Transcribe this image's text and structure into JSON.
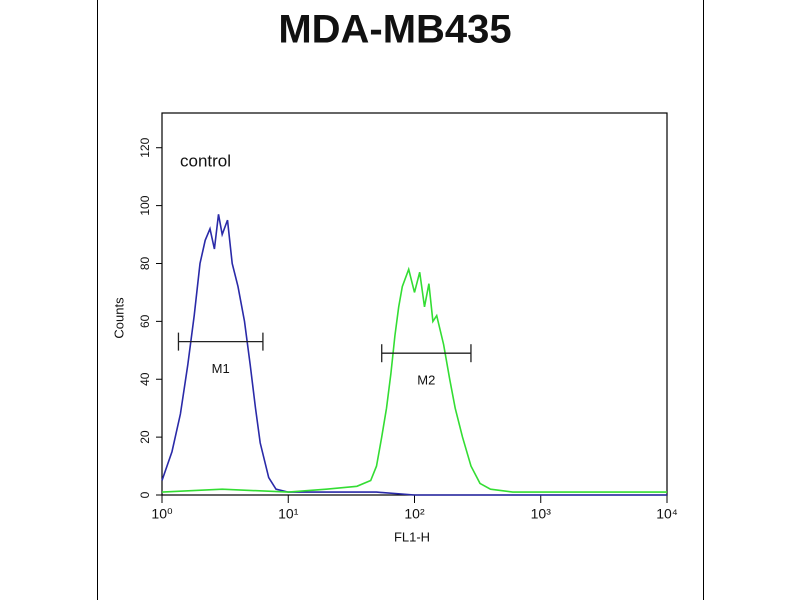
{
  "chart_data": {
    "type": "histogram-overlay",
    "title": "MDA-MB435",
    "x_label": "FL1-H",
    "y_label": "Counts",
    "annotation": "control",
    "xscale": "log",
    "xlim": [
      1,
      10000
    ],
    "ylim": [
      0,
      132
    ],
    "xticks": [
      {
        "value": 1,
        "label": "10⁰"
      },
      {
        "value": 10,
        "label": "10¹"
      },
      {
        "value": 100,
        "label": "10²"
      },
      {
        "value": 1000,
        "label": "10³"
      },
      {
        "value": 10000,
        "label": "10⁴"
      }
    ],
    "yticks": [
      0,
      20,
      40,
      60,
      80,
      100,
      120
    ],
    "series": [
      {
        "color": "#2a2aa8",
        "x": [
          1,
          1.2,
          1.4,
          1.6,
          1.8,
          2,
          2.2,
          2.4,
          2.6,
          2.8,
          3,
          3.3,
          3.6,
          4,
          4.5,
          5,
          5.5,
          6,
          7,
          8,
          10,
          20,
          50,
          100,
          1000,
          10000
        ],
        "values": [
          5,
          15,
          28,
          45,
          62,
          80,
          88,
          92,
          85,
          97,
          90,
          95,
          80,
          72,
          60,
          45,
          30,
          18,
          6,
          2,
          1,
          1,
          1,
          0,
          0,
          0
        ]
      },
      {
        "color": "#33dd33",
        "x": [
          1,
          3,
          10,
          20,
          35,
          45,
          50,
          55,
          60,
          65,
          70,
          75,
          80,
          90,
          100,
          110,
          120,
          130,
          140,
          150,
          170,
          190,
          210,
          240,
          280,
          330,
          400,
          600,
          1000,
          10000
        ],
        "values": [
          1,
          2,
          1,
          2,
          3,
          5,
          10,
          20,
          30,
          42,
          55,
          65,
          72,
          78,
          70,
          77,
          65,
          73,
          60,
          62,
          52,
          40,
          30,
          20,
          10,
          4,
          2,
          1,
          1,
          1
        ]
      }
    ],
    "gates": [
      {
        "label": "M1",
        "x": [
          1.35,
          6.3
        ],
        "y": 53
      },
      {
        "label": "M2",
        "x": [
          55,
          280
        ],
        "y": 49
      }
    ]
  }
}
